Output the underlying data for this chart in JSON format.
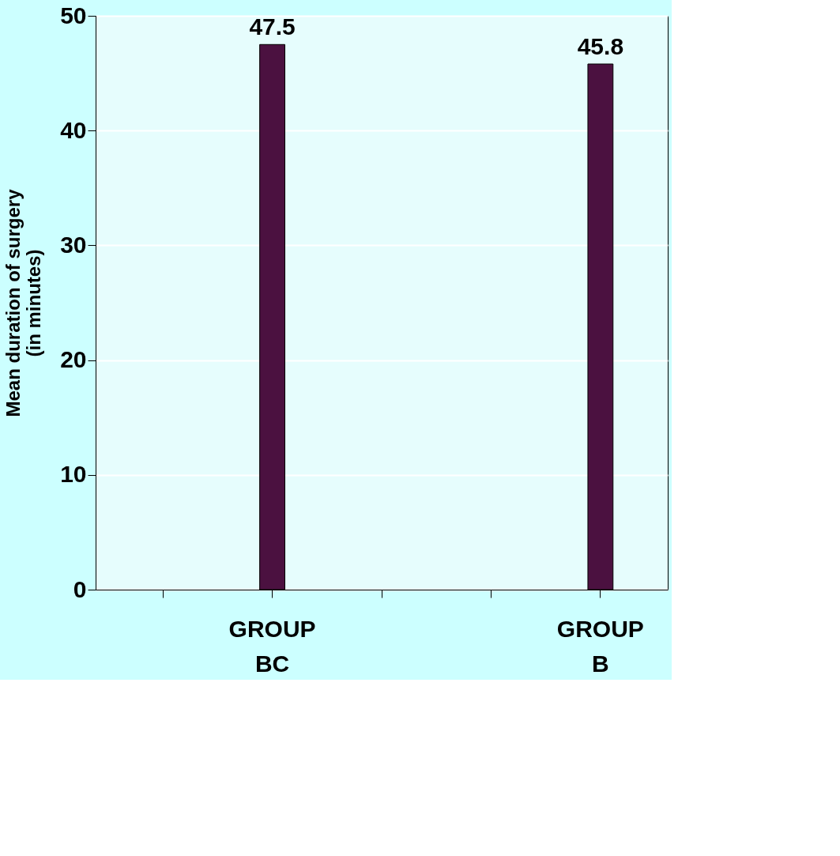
{
  "chart_data": {
    "type": "bar",
    "ylabel": "Mean duration of surgery (in minutes)",
    "categories": [
      null,
      "GROUP BC",
      null,
      null,
      "GROUP B"
    ],
    "series": [
      {
        "color": "#4b1140",
        "values": [
          null,
          47.5,
          null,
          null,
          45.8
        ]
      }
    ],
    "ylim": [
      0,
      50
    ],
    "yticks": [
      0,
      10,
      20,
      30,
      40,
      50
    ],
    "grid": "y",
    "data_labels": true,
    "legend": false
  }
}
